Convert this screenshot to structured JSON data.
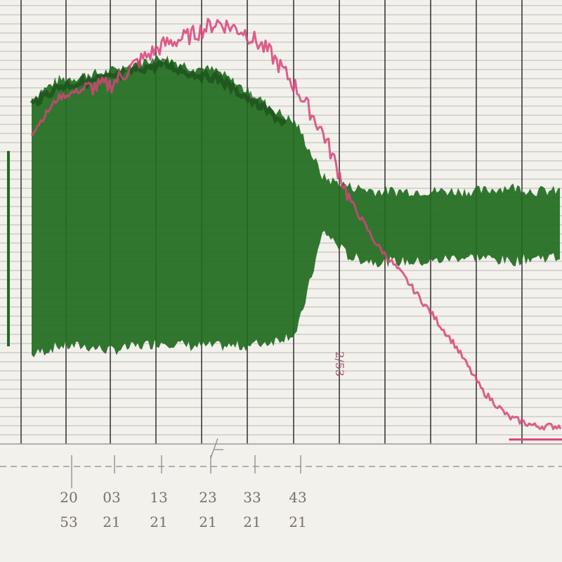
{
  "chart_data": {
    "type": "line",
    "title": "",
    "xlabel": "",
    "ylabel": "",
    "grid": true,
    "x_tick_labels": [
      {
        "top": "20",
        "bottom": "53"
      },
      {
        "top": "03",
        "bottom": "21"
      },
      {
        "top": "13",
        "bottom": "21"
      },
      {
        "top": "23",
        "bottom": "21"
      },
      {
        "top": "33",
        "bottom": "21"
      },
      {
        "top": "43",
        "bottom": "21"
      }
    ],
    "annotations": [
      "2/53"
    ],
    "colors": {
      "paper": "#f3f1ec",
      "grid_minor": "#b9b9b9",
      "grid_major": "#3a3a3a",
      "green_trace": "#1f6b1e",
      "green_dark": "#1a4d18",
      "pink_trace": "#d8437a",
      "ink": "#7a6f6a"
    },
    "series": [
      {
        "x": [
          0,
          5,
          10,
          15,
          20,
          25,
          30,
          35,
          40,
          45,
          50,
          55,
          60,
          65,
          70,
          75,
          80,
          85,
          90,
          95,
          100
        ],
        "upper": [
          0.78,
          0.82,
          0.83,
          0.84,
          0.86,
          0.87,
          0.85,
          0.84,
          0.8,
          0.76,
          0.72,
          0.6,
          0.58,
          0.57,
          0.57,
          0.57,
          0.57,
          0.57,
          0.58,
          0.57,
          0.57
        ],
        "lower": [
          0.2,
          0.22,
          0.22,
          0.21,
          0.22,
          0.23,
          0.22,
          0.22,
          0.22,
          0.23,
          0.25,
          0.48,
          0.42,
          0.41,
          0.41,
          0.41,
          0.42,
          0.42,
          0.41,
          0.42,
          0.42
        ]
      },
      {
        "x": [
          0,
          5,
          10,
          15,
          20,
          25,
          30,
          35,
          40,
          45,
          50,
          55,
          60,
          65,
          70,
          75,
          80,
          85,
          90,
          95,
          100
        ],
        "y": [
          0.7,
          0.78,
          0.8,
          0.81,
          0.86,
          0.9,
          0.92,
          0.95,
          0.93,
          0.88,
          0.8,
          0.7,
          0.55,
          0.45,
          0.38,
          0.3,
          0.22,
          0.12,
          0.06,
          0.04,
          0.04
        ]
      }
    ]
  }
}
